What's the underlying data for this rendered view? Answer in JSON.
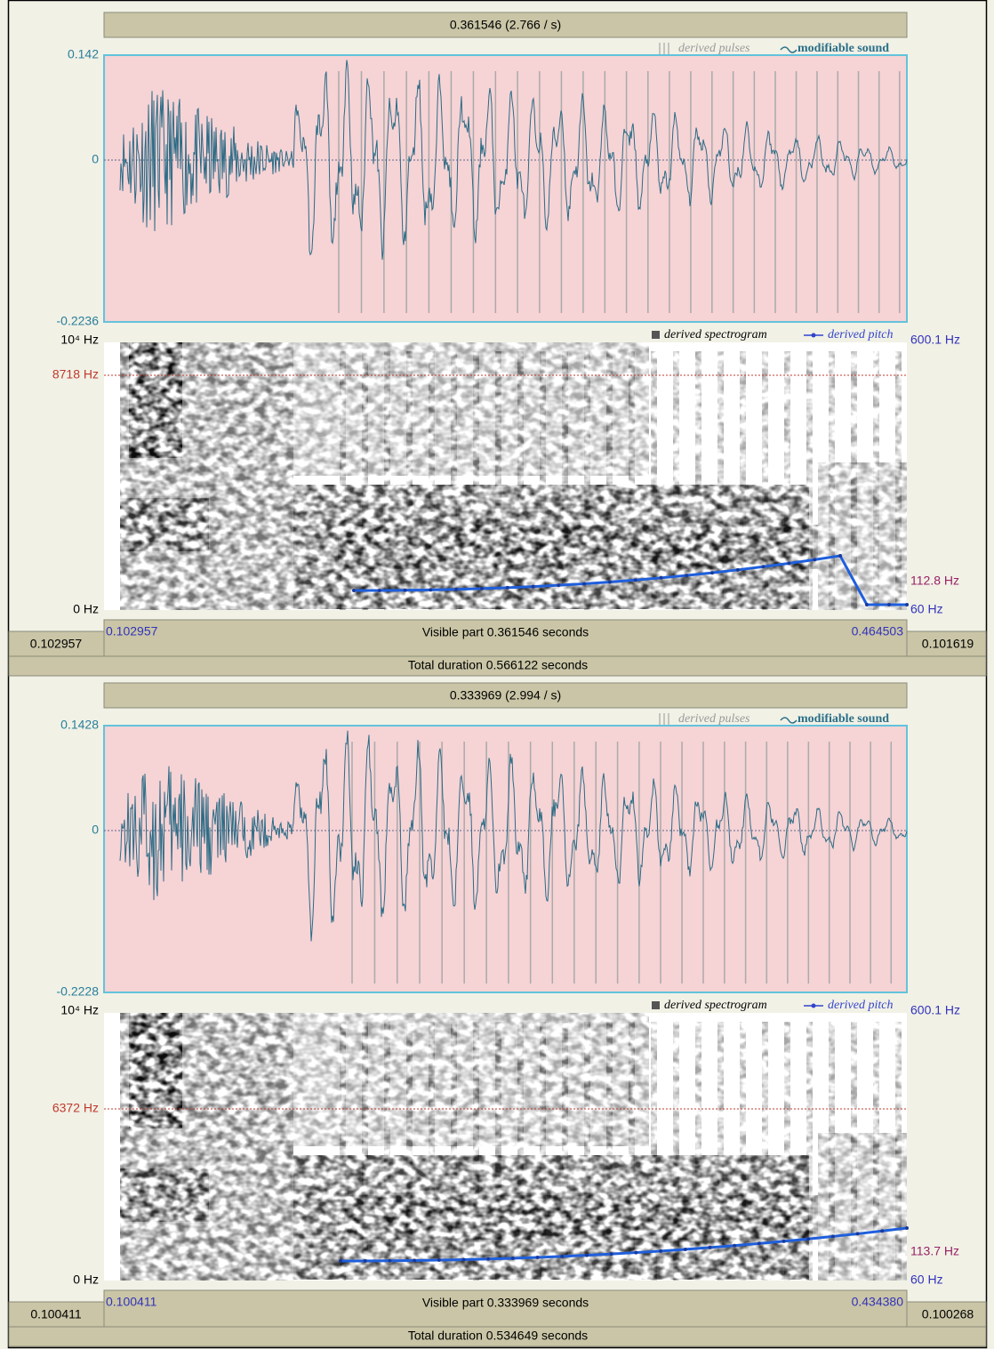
{
  "panels": [
    {
      "header": "0.361546 (2.766 / s)",
      "legend": {
        "pulses": "derived pulses",
        "sound": "modifiable sound",
        "spectrogram": "derived spectrogram",
        "pitch": "derived pitch"
      },
      "waveform": {
        "top": "0.142",
        "zero": "0",
        "bottom": "-0.2236"
      },
      "spectrogram": {
        "top": "10⁴ Hz",
        "cursor": "8718 Hz",
        "bottom": "0 Hz"
      },
      "pitch": {
        "top": "600.1 Hz",
        "value": "112.8 Hz",
        "bottom": "60 Hz"
      },
      "footer": {
        "left": "0.102957",
        "view_start": "0.102957",
        "visible": "Visible part 0.361546 seconds",
        "view_end": "0.464503",
        "right": "0.101619"
      },
      "total": "Total duration 0.566122 seconds"
    },
    {
      "header": "0.333969 (2.994 / s)",
      "legend": {
        "pulses": "derived pulses",
        "sound": "modifiable sound",
        "spectrogram": "derived spectrogram",
        "pitch": "derived pitch"
      },
      "waveform": {
        "top": "0.1428",
        "zero": "0",
        "bottom": "-0.2228"
      },
      "spectrogram": {
        "top": "10⁴ Hz",
        "cursor": "6372 Hz",
        "bottom": "0 Hz"
      },
      "pitch": {
        "top": "600.1 Hz",
        "value": "113.7 Hz",
        "bottom": "60 Hz"
      },
      "footer": {
        "left": "0.100411",
        "view_start": "0.100411",
        "visible": "Visible part 0.333969 seconds",
        "view_end": "0.434380",
        "right": "0.100268"
      },
      "total": "Total duration 0.534649 seconds"
    }
  ]
}
